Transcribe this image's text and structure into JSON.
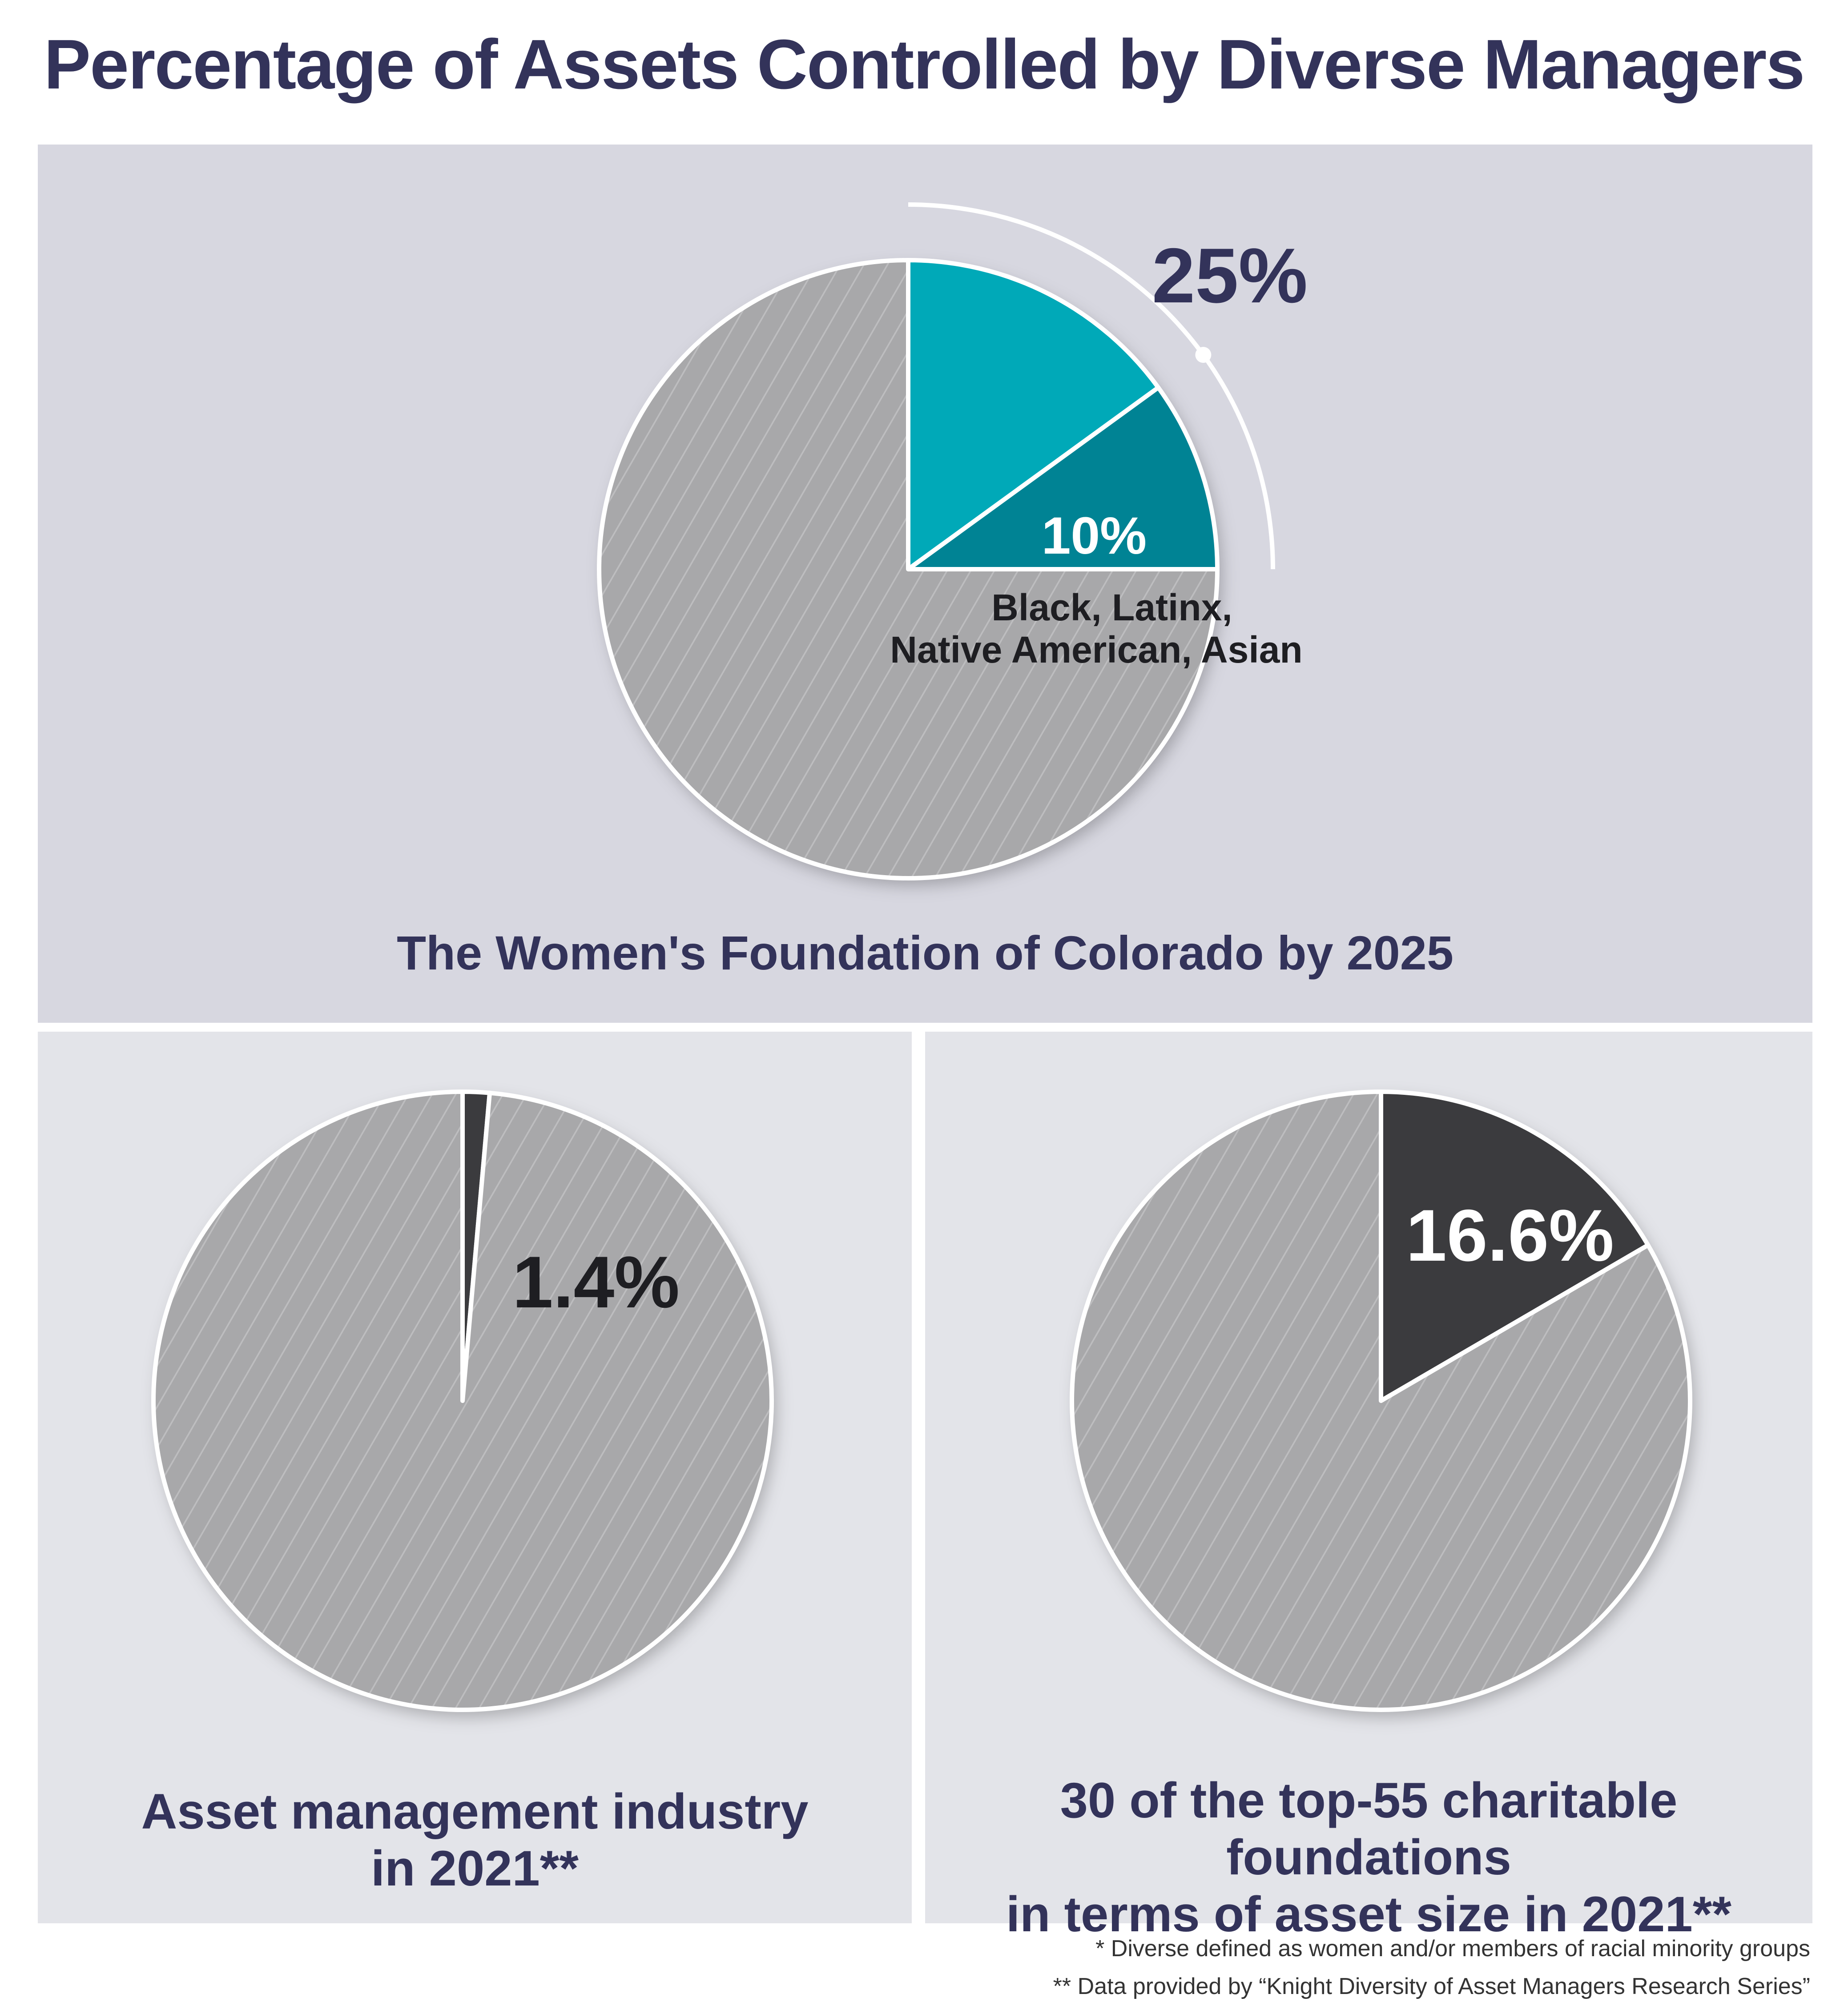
{
  "title": "Percentage of Assets Controlled by Diverse Managers",
  "colors": {
    "title": "#33335a",
    "teal_light": "#00a9b8",
    "teal_dark": "#008394",
    "dark_slice": "#3b3b3e",
    "hatched_slice": "#a8a8aa",
    "panel_top": "#d7d7e0",
    "panel_bottom": "#e3e4e9"
  },
  "chart_data": [
    {
      "type": "pie",
      "title": "The Women's Foundation of Colorado by 2025",
      "slices": [
        {
          "label": "Black, Latinx, Native American, Asian",
          "value": 10,
          "value_label": "10%"
        },
        {
          "label": "",
          "value": 15,
          "value_label": ""
        },
        {
          "label": "",
          "value": 75,
          "value_label": ""
        }
      ],
      "annotation": "25%",
      "annotation_note": "Black, Latinx,\nNative American, Asian"
    },
    {
      "type": "pie",
      "title": "Asset management industry in 2021**",
      "slices": [
        {
          "label": "",
          "value": 1.4,
          "value_label": "1.4%"
        },
        {
          "label": "",
          "value": 98.6,
          "value_label": ""
        }
      ]
    },
    {
      "type": "pie",
      "title": "30 of the top-55 charitable foundations in terms of asset size in 2021**",
      "slices": [
        {
          "label": "",
          "value": 16.6,
          "value_label": "16.6%"
        },
        {
          "label": "",
          "value": 83.4,
          "value_label": ""
        }
      ]
    }
  ],
  "labels": {
    "top_annotation": "25%",
    "top_inner": "10%",
    "top_note_line1": "Black, Latinx,",
    "top_note_line2": "Native American, Asian",
    "left_value": "1.4%",
    "right_value": "16.6%"
  },
  "captions": {
    "top": "The Women's Foundation of Colorado by 2025",
    "left_line1": "Asset management industry",
    "left_line2": "in 2021**",
    "right_line1": "30 of the top-55 charitable foundations",
    "right_line2": "in terms of asset size in 2021**"
  },
  "footnotes": {
    "fn1": "* Diverse defined as women and/or members of racial minority groups",
    "fn2": "** Data provided by “Knight Diversity of Asset Managers Research Series”"
  }
}
